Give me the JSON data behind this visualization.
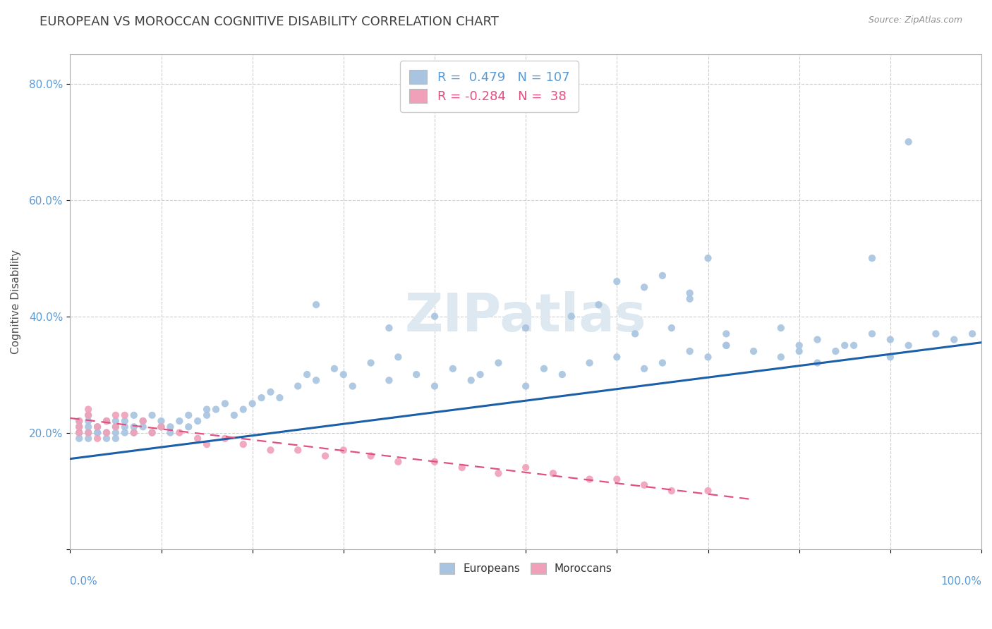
{
  "title": "EUROPEAN VS MOROCCAN COGNITIVE DISABILITY CORRELATION CHART",
  "source": "Source: ZipAtlas.com",
  "ylabel": "Cognitive Disability",
  "legend_r_european": "R =  0.479",
  "legend_n_european": "N = 107",
  "legend_r_moroccan": "R = -0.284",
  "legend_n_moroccan": "N =  38",
  "watermark": "ZIPatlas",
  "european_color": "#a8c4e0",
  "moroccan_color": "#f0a0b8",
  "european_line_color": "#1a5fa8",
  "moroccan_line_color": "#e05080",
  "background_color": "#ffffff",
  "grid_color": "#cccccc",
  "title_color": "#404040",
  "europeans_x": [
    0.01,
    0.01,
    0.01,
    0.01,
    0.02,
    0.02,
    0.02,
    0.02,
    0.02,
    0.03,
    0.03,
    0.03,
    0.04,
    0.04,
    0.04,
    0.05,
    0.05,
    0.05,
    0.05,
    0.06,
    0.06,
    0.06,
    0.07,
    0.07,
    0.07,
    0.08,
    0.08,
    0.09,
    0.09,
    0.1,
    0.1,
    0.11,
    0.11,
    0.12,
    0.13,
    0.13,
    0.14,
    0.15,
    0.15,
    0.16,
    0.17,
    0.18,
    0.19,
    0.2,
    0.21,
    0.22,
    0.23,
    0.25,
    0.26,
    0.27,
    0.29,
    0.3,
    0.31,
    0.33,
    0.35,
    0.36,
    0.38,
    0.4,
    0.42,
    0.44,
    0.45,
    0.47,
    0.5,
    0.52,
    0.54,
    0.57,
    0.6,
    0.63,
    0.65,
    0.68,
    0.7,
    0.72,
    0.75,
    0.78,
    0.8,
    0.82,
    0.85,
    0.88,
    0.9,
    0.92,
    0.95,
    0.97,
    0.99,
    0.27,
    0.35,
    0.4,
    0.5,
    0.55,
    0.6,
    0.65,
    0.68,
    0.7,
    0.72,
    0.58,
    0.62,
    0.63,
    0.66,
    0.68,
    0.72,
    0.78,
    0.8,
    0.82,
    0.84,
    0.86,
    0.88,
    0.9,
    0.92
  ],
  "europeans_y": [
    0.2,
    0.22,
    0.19,
    0.21,
    0.21,
    0.2,
    0.22,
    0.19,
    0.23,
    0.2,
    0.21,
    0.2,
    0.19,
    0.22,
    0.2,
    0.2,
    0.21,
    0.22,
    0.19,
    0.21,
    0.2,
    0.22,
    0.2,
    0.21,
    0.23,
    0.21,
    0.22,
    0.2,
    0.23,
    0.21,
    0.22,
    0.2,
    0.21,
    0.22,
    0.23,
    0.21,
    0.22,
    0.23,
    0.24,
    0.24,
    0.25,
    0.23,
    0.24,
    0.25,
    0.26,
    0.27,
    0.26,
    0.28,
    0.3,
    0.29,
    0.31,
    0.3,
    0.28,
    0.32,
    0.29,
    0.33,
    0.3,
    0.28,
    0.31,
    0.29,
    0.3,
    0.32,
    0.28,
    0.31,
    0.3,
    0.32,
    0.33,
    0.31,
    0.32,
    0.34,
    0.33,
    0.35,
    0.34,
    0.33,
    0.34,
    0.36,
    0.35,
    0.37,
    0.36,
    0.35,
    0.37,
    0.36,
    0.37,
    0.42,
    0.38,
    0.4,
    0.38,
    0.4,
    0.46,
    0.47,
    0.44,
    0.5,
    0.37,
    0.42,
    0.37,
    0.45,
    0.38,
    0.43,
    0.35,
    0.38,
    0.35,
    0.32,
    0.34,
    0.35,
    0.5,
    0.33,
    0.7
  ],
  "moroccans_x": [
    0.01,
    0.01,
    0.01,
    0.02,
    0.02,
    0.02,
    0.03,
    0.03,
    0.04,
    0.04,
    0.05,
    0.05,
    0.06,
    0.07,
    0.08,
    0.09,
    0.1,
    0.12,
    0.14,
    0.15,
    0.17,
    0.19,
    0.22,
    0.25,
    0.28,
    0.3,
    0.33,
    0.36,
    0.4,
    0.43,
    0.47,
    0.5,
    0.53,
    0.57,
    0.6,
    0.63,
    0.66,
    0.7
  ],
  "moroccans_y": [
    0.2,
    0.22,
    0.21,
    0.24,
    0.2,
    0.23,
    0.21,
    0.19,
    0.22,
    0.2,
    0.23,
    0.21,
    0.23,
    0.2,
    0.22,
    0.2,
    0.21,
    0.2,
    0.19,
    0.18,
    0.19,
    0.18,
    0.17,
    0.17,
    0.16,
    0.17,
    0.16,
    0.15,
    0.15,
    0.14,
    0.13,
    0.14,
    0.13,
    0.12,
    0.12,
    0.11,
    0.1,
    0.1
  ],
  "european_trend_x": [
    0.0,
    1.0
  ],
  "european_trend_y": [
    0.155,
    0.355
  ],
  "moroccan_trend_x": [
    0.0,
    0.75
  ],
  "moroccan_trend_y": [
    0.225,
    0.085
  ],
  "ylim_low": 0.0,
  "ylim_high": 0.85,
  "xlim_low": 0.0,
  "xlim_high": 1.0,
  "ytick_vals": [
    0.0,
    0.2,
    0.4,
    0.6,
    0.8
  ],
  "ytick_labels": [
    "",
    "20.0%",
    "40.0%",
    "60.0%",
    "80.0%"
  ],
  "xtick_vals": [
    0.0,
    0.1,
    0.2,
    0.3,
    0.4,
    0.5,
    0.6,
    0.7,
    0.8,
    0.9,
    1.0
  ]
}
